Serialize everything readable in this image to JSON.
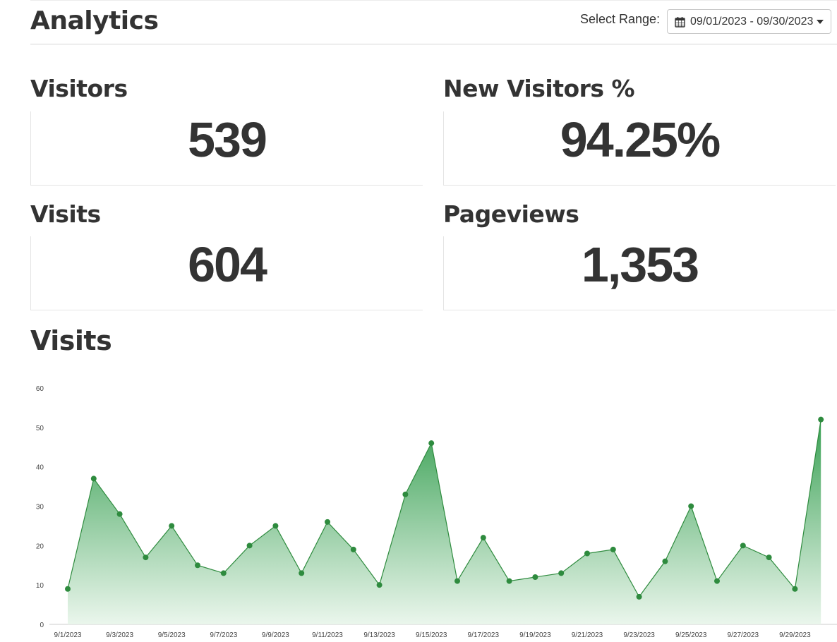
{
  "header": {
    "title": "Analytics",
    "range_label": "Select Range:",
    "range_value": "09/01/2023 - 09/30/2023",
    "range_icon": "calendar-icon",
    "caret_icon": "caret-down-icon"
  },
  "stats": {
    "visitors": {
      "label": "Visitors",
      "value": "539"
    },
    "new_visitors": {
      "label": "New Visitors %",
      "value": "94.25%"
    },
    "visits": {
      "label": "Visits",
      "value": "604"
    },
    "pageviews": {
      "label": "Pageviews",
      "value": "1,353"
    }
  },
  "chart_section": {
    "title": "Visits"
  },
  "colors": {
    "line": "#2e8b3e",
    "fill_top": "#2e9b4a",
    "fill_bottom": "#e8f5ea",
    "text": "#333333"
  },
  "chart_data": {
    "type": "area",
    "x": [
      "9/1/2023",
      "9/2/2023",
      "9/3/2023",
      "9/4/2023",
      "9/5/2023",
      "9/6/2023",
      "9/7/2023",
      "9/8/2023",
      "9/9/2023",
      "9/10/2023",
      "9/11/2023",
      "9/12/2023",
      "9/13/2023",
      "9/14/2023",
      "9/15/2023",
      "9/16/2023",
      "9/17/2023",
      "9/18/2023",
      "9/19/2023",
      "9/20/2023",
      "9/21/2023",
      "9/22/2023",
      "9/23/2023",
      "9/24/2023",
      "9/25/2023",
      "9/26/2023",
      "9/27/2023",
      "9/28/2023",
      "9/29/2023",
      "9/30/2023"
    ],
    "values": [
      9,
      37,
      28,
      17,
      25,
      15,
      13,
      20,
      25,
      13,
      26,
      19,
      10,
      33,
      46,
      11,
      22,
      11,
      12,
      13,
      18,
      19,
      7,
      16,
      30,
      11,
      20,
      17,
      9,
      52
    ],
    "x_tick_labels": [
      "9/1/2023",
      "9/3/2023",
      "9/5/2023",
      "9/7/2023",
      "9/9/2023",
      "9/11/2023",
      "9/13/2023",
      "9/15/2023",
      "9/17/2023",
      "9/19/2023",
      "9/21/2023",
      "9/23/2023",
      "9/25/2023",
      "9/27/2023",
      "9/29/2023"
    ],
    "y_ticks": [
      0,
      10,
      20,
      30,
      40,
      50,
      60
    ],
    "ylim": [
      0,
      60
    ],
    "grid": false,
    "legend": "none"
  }
}
